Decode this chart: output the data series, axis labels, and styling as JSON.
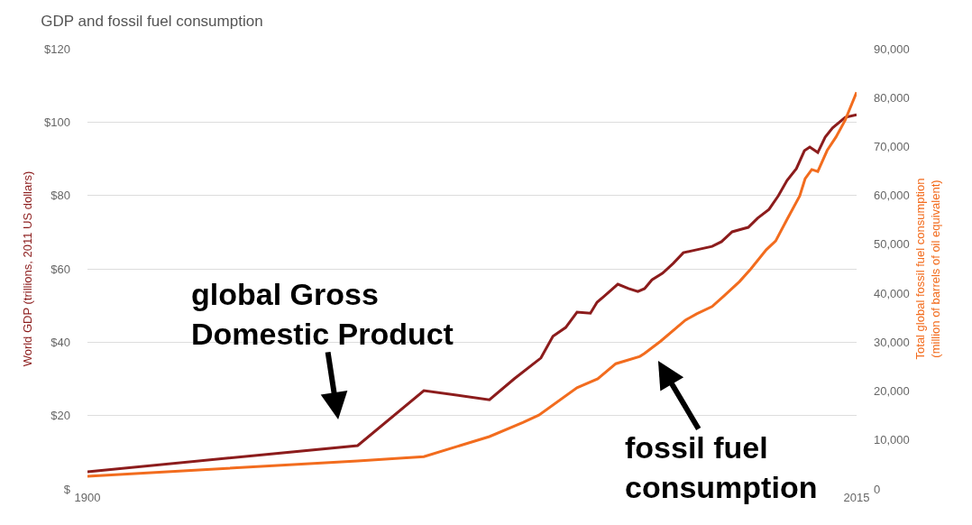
{
  "chart_data": {
    "type": "line",
    "title": "GDP and fossil fuel consumption",
    "ylabel": "World GDP (trillions, 2011 US dollars)",
    "y2label": "Total global fossil fuel consumption\n(million of barrels of oil equivalent)",
    "xlim": [
      1900,
      2015
    ],
    "xticks": [
      1900,
      2015
    ],
    "ylim": [
      0,
      120
    ],
    "yticks": [
      {
        "value": 0,
        "label": "$"
      },
      {
        "value": 20,
        "label": "$20"
      },
      {
        "value": 40,
        "label": "$40"
      },
      {
        "value": 60,
        "label": "$60"
      },
      {
        "value": 80,
        "label": "$80"
      },
      {
        "value": 100,
        "label": "$100"
      },
      {
        "value": 120,
        "label": "$120"
      }
    ],
    "y2lim": [
      0,
      90000
    ],
    "y2ticks": [
      0,
      {
        "value": 10000,
        "label": "10,000"
      },
      {
        "value": 20000,
        "label": "20,000"
      },
      {
        "value": 30000,
        "label": "30,000"
      },
      {
        "value": 40000,
        "label": "40,000"
      },
      {
        "value": 50000,
        "label": "50,000"
      },
      {
        "value": 60000,
        "label": "60,000"
      },
      {
        "value": 70000,
        "label": "70,000"
      },
      {
        "value": 80000,
        "label": "80,000"
      },
      {
        "value": 90000,
        "label": "90,000"
      }
    ],
    "grid": "y",
    "series": [
      {
        "color": "#8c1c1c",
        "x": [
          1900,
          1940.4,
          1950.3,
          1960.1,
          1963.8,
          1967.8,
          1969.6,
          1971.5,
          1973.2,
          1975.2,
          1976.2,
          1977.3,
          1979.3,
          1980.9,
          1982.3,
          1983.3,
          1984.4,
          1986.0,
          1987.6,
          1989.1,
          1991.1,
          1993.4,
          1994.8,
          1996.4,
          1998.8,
          2000.2,
          2001.9,
          2003.3,
          2004.6,
          2006.0,
          2007.2,
          2008.0,
          2009.2,
          2010.3,
          2011.4,
          2013.3,
          2015
        ],
        "values": [
          4.7,
          11.8,
          26.8,
          24.3,
          30.0,
          35.7,
          41.6,
          44.0,
          48.2,
          47.9,
          50.9,
          52.6,
          55.8,
          54.6,
          53.8,
          54.6,
          57.0,
          58.8,
          61.5,
          64.4,
          65.2,
          66.1,
          67.4,
          70.1,
          71.3,
          73.8,
          76.2,
          79.9,
          84.1,
          87.3,
          92.2,
          93.2,
          91.7,
          95.9,
          98.4,
          101.3,
          102.0
        ]
      },
      {
        "color": "#f26c1e",
        "axis": "y2",
        "x": [
          1900,
          1940.4,
          1950.3,
          1960.1,
          1965.1,
          1967.5,
          1973.2,
          1976.3,
          1979.0,
          1982.6,
          1983.3,
          1985.7,
          1989.4,
          1991.1,
          1993.4,
          1995.2,
          1997.5,
          1999.2,
          2001.5,
          2002.9,
          2004.6,
          2006.5,
          2007.3,
          2008.3,
          2009.2,
          2010.6,
          2011.9,
          2013.3,
          2015
        ],
        "values": [
          2600,
          5700,
          6600,
          10700,
          13600,
          15100,
          20700,
          22500,
          25600,
          27100,
          27700,
          30200,
          34500,
          35800,
          37300,
          39500,
          42400,
          45000,
          48900,
          50700,
          55100,
          59900,
          63400,
          65300,
          64900,
          69200,
          71900,
          75400,
          81100
        ]
      }
    ],
    "annotations": [
      "global Gross\nDomestic Product",
      "fossil fuel\nconsumption"
    ]
  }
}
